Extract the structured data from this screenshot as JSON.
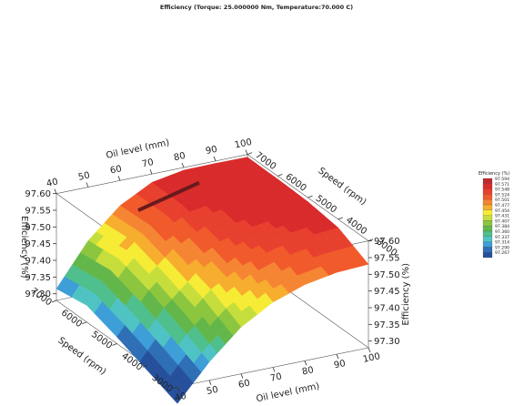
{
  "chart_data": {
    "type": "surface",
    "title": "Efficiency (Torque: 25.000000 Nm, Temperature:70.000 C)",
    "x_axis": {
      "label": "Oil level (mm)",
      "ticks": [
        "40",
        "50",
        "60",
        "70",
        "80",
        "90",
        "100"
      ],
      "range": [
        40,
        100
      ]
    },
    "y_axis": {
      "label": "Speed (rpm)",
      "ticks": [
        "3000",
        "4000",
        "5000",
        "6000",
        "7000"
      ],
      "range": [
        3000,
        7000
      ]
    },
    "z_axis": {
      "label": "Efficiency (%)",
      "ticks": [
        "97.30",
        "97.35",
        "97.40",
        "97.45",
        "97.50",
        "97.55",
        "97.60"
      ],
      "range": [
        97.28,
        97.6
      ]
    },
    "speed_levels": [
      7000,
      6000,
      5000,
      4000,
      3000
    ],
    "oil_levels": [
      40,
      50,
      60,
      70,
      80,
      90,
      100
    ],
    "z_grid": [
      [
        97.315,
        97.44,
        97.525,
        97.575,
        97.592,
        97.593,
        97.592
      ],
      [
        97.33,
        97.45,
        97.53,
        97.572,
        97.588,
        97.592,
        97.591
      ],
      [
        97.3,
        97.42,
        97.5,
        97.55,
        97.573,
        97.585,
        97.588
      ],
      [
        97.265,
        97.38,
        97.468,
        97.52,
        97.55,
        97.566,
        97.575
      ],
      [
        97.23,
        97.335,
        97.42,
        97.475,
        97.508,
        97.525,
        97.53
      ]
    ],
    "legend": {
      "title": "Efficiency (%)",
      "levels": [
        "97.594",
        "97.571",
        "97.548",
        "97.524",
        "97.501",
        "97.477",
        "97.454",
        "97.431",
        "97.407",
        "97.384",
        "97.360",
        "97.337",
        "97.314",
        "97.290",
        "97.267"
      ],
      "colors": [
        "#c0272d",
        "#d92b2b",
        "#e8402e",
        "#f15a2b",
        "#f58533",
        "#f7ad2e",
        "#f6ec35",
        "#c6de3c",
        "#8cc63f",
        "#63b74a",
        "#4ebf8d",
        "#4fc3c4",
        "#3d9ed8",
        "#2e6fb5",
        "#27509c"
      ]
    },
    "grid": true,
    "legend_position": "right"
  }
}
